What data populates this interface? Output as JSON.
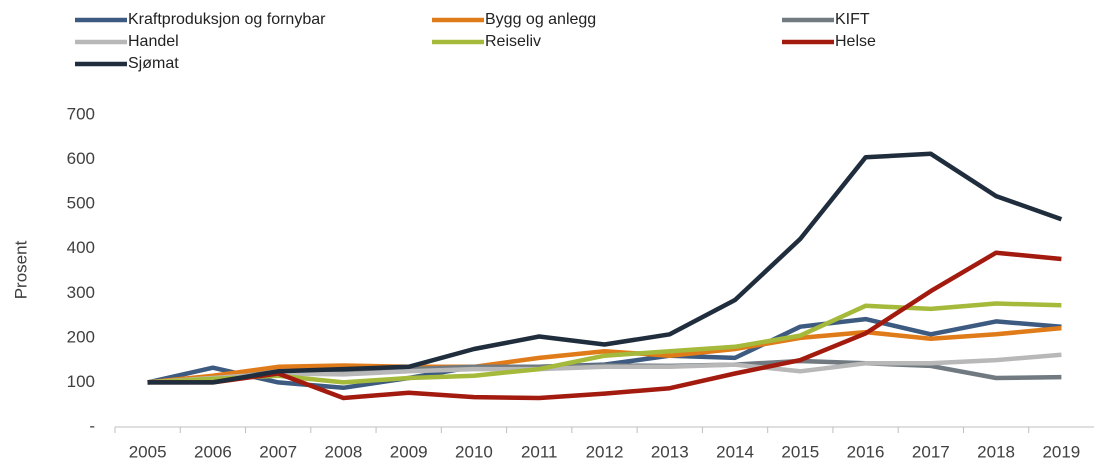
{
  "chart_data": {
    "type": "line",
    "y_label": "Prosent",
    "categories": [
      "2005",
      "2006",
      "2007",
      "2008",
      "2009",
      "2010",
      "2011",
      "2012",
      "2013",
      "2014",
      "2015",
      "2016",
      "2017",
      "2018",
      "2019"
    ],
    "series": [
      {
        "name": "Kraftproduksjon og fornybar",
        "color": "#3d5a80",
        "values": [
          100,
          133,
          100,
          88,
          110,
          135,
          135,
          140,
          160,
          155,
          225,
          242,
          208,
          237,
          225
        ]
      },
      {
        "name": "Bygg og anlegg",
        "color": "#e07b1a",
        "values": [
          100,
          115,
          135,
          138,
          135,
          135,
          155,
          170,
          160,
          175,
          200,
          213,
          198,
          208,
          222
        ]
      },
      {
        "name": "KIFT",
        "color": "#707a80",
        "values": [
          100,
          105,
          125,
          125,
          130,
          135,
          135,
          138,
          137,
          140,
          148,
          143,
          137,
          110,
          112
        ]
      },
      {
        "name": "Handel",
        "color": "#b8b8b8",
        "values": [
          100,
          110,
          120,
          118,
          125,
          130,
          130,
          135,
          135,
          140,
          125,
          143,
          143,
          150,
          162
        ]
      },
      {
        "name": "Reiseliv",
        "color": "#a5b93a",
        "values": [
          100,
          108,
          115,
          100,
          110,
          115,
          130,
          160,
          170,
          180,
          205,
          272,
          265,
          277,
          273
        ]
      },
      {
        "name": "Helse",
        "color": "#a31a0f",
        "values": [
          100,
          100,
          120,
          65,
          77,
          67,
          65,
          75,
          87,
          120,
          150,
          210,
          305,
          391,
          377
        ]
      },
      {
        "name": "Sjømat",
        "color": "#1f2d3d",
        "values": [
          100,
          100,
          125,
          130,
          135,
          175,
          203,
          185,
          208,
          285,
          422,
          605,
          613,
          518,
          466
        ]
      }
    ],
    "ylim": [
      0,
      700
    ],
    "yticks": [
      {
        "value": 0,
        "label": "-"
      },
      100,
      200,
      300,
      400,
      500,
      600,
      700
    ],
    "legend": "top"
  }
}
